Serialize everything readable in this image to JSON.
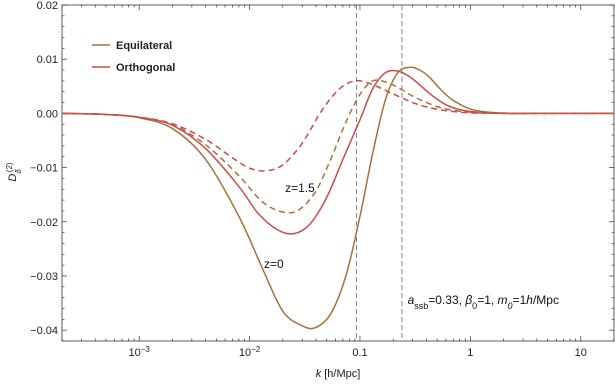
{
  "chart_data": {
    "type": "line",
    "xscale": "log",
    "xlim": [
      0.0002,
      20
    ],
    "ylim": [
      -0.042,
      0.02
    ],
    "xlabel_italic": "k",
    "xlabel_unit": " [h/Mpc]",
    "ylabel_base": "D",
    "ylabel_sub": "δ",
    "ylabel_sup": "(2)",
    "x_ticks": [
      {
        "value": 0.001,
        "base": "10",
        "exp": "−3"
      },
      {
        "value": 0.01,
        "base": "10",
        "exp": "−2"
      },
      {
        "value": 0.1,
        "label": "0.1"
      },
      {
        "value": 1,
        "label": "1"
      },
      {
        "value": 10,
        "label": "10"
      }
    ],
    "y_ticks": [
      {
        "value": 0.02,
        "label": "0.02"
      },
      {
        "value": 0.01,
        "label": "0.01"
      },
      {
        "value": 0.0,
        "label": "0.00"
      },
      {
        "value": -0.01,
        "label": "−0.01"
      },
      {
        "value": -0.02,
        "label": "−0.02"
      },
      {
        "value": -0.03,
        "label": "−0.03"
      },
      {
        "value": -0.04,
        "label": "−0.04"
      }
    ],
    "vlines": [
      0.093,
      0.24
    ],
    "legend": {
      "placement": "top-left",
      "entries": [
        {
          "name": "Equilateral",
          "color": "#a5733a"
        },
        {
          "name": "Orthogonal",
          "color": "#cf4b4b"
        }
      ]
    },
    "series": [
      {
        "name": "Equilateral",
        "redshift": "z=0",
        "color": "#a5733a",
        "dashed": false,
        "x": [
          0.0002,
          0.0005,
          0.001,
          0.002,
          0.004,
          0.008,
          0.013,
          0.02,
          0.03,
          0.04,
          0.055,
          0.075,
          0.1,
          0.13,
          0.17,
          0.22,
          0.28,
          0.34,
          0.42,
          0.55,
          0.7,
          1.0,
          1.5,
          2.5,
          5,
          10,
          20
        ],
        "y": [
          0.0,
          -0.0002,
          -0.0008,
          -0.0028,
          -0.0085,
          -0.019,
          -0.0285,
          -0.0365,
          -0.0392,
          -0.0395,
          -0.0368,
          -0.0298,
          -0.019,
          -0.0075,
          0.0025,
          0.0075,
          0.0085,
          0.0081,
          0.0068,
          0.0042,
          0.0024,
          0.0008,
          0.0002,
          0.0,
          0.0,
          0.0,
          0.0
        ]
      },
      {
        "name": "Orthogonal",
        "redshift": "z=0",
        "color": "#cf4b4b",
        "dashed": false,
        "x": [
          0.0002,
          0.0005,
          0.001,
          0.002,
          0.004,
          0.008,
          0.012,
          0.018,
          0.025,
          0.035,
          0.05,
          0.07,
          0.1,
          0.13,
          0.17,
          0.22,
          0.28,
          0.35,
          0.45,
          0.6,
          0.8,
          1.2,
          2,
          4,
          10,
          20
        ],
        "y": [
          0.0,
          -0.0002,
          -0.0007,
          -0.0022,
          -0.0065,
          -0.0135,
          -0.0185,
          -0.0215,
          -0.0222,
          -0.0205,
          -0.0155,
          -0.0085,
          -0.0012,
          0.0045,
          0.0075,
          0.0078,
          0.0068,
          0.0052,
          0.0033,
          0.0016,
          0.0007,
          0.0002,
          0.0,
          0.0,
          0.0,
          0.0
        ]
      },
      {
        "name": "Equilateral",
        "redshift": "z=1.5",
        "color": "#a5733a",
        "dashed": true,
        "x": [
          0.0002,
          0.0005,
          0.001,
          0.002,
          0.004,
          0.008,
          0.013,
          0.02,
          0.028,
          0.04,
          0.055,
          0.075,
          0.1,
          0.13,
          0.17,
          0.22,
          0.3,
          0.4,
          0.55,
          0.8,
          1.2,
          2,
          4,
          10,
          20
        ],
        "y": [
          0.0,
          -0.0002,
          -0.0007,
          -0.0021,
          -0.0058,
          -0.0115,
          -0.0163,
          -0.0182,
          -0.0178,
          -0.0143,
          -0.0082,
          -0.0015,
          0.0035,
          0.006,
          0.0058,
          0.0048,
          0.0032,
          0.002,
          0.001,
          0.0004,
          0.0001,
          0.0,
          0.0,
          0.0,
          0.0
        ]
      },
      {
        "name": "Orthogonal",
        "redshift": "z=1.5",
        "color": "#cf4b4b",
        "dashed": true,
        "x": [
          0.0002,
          0.0005,
          0.001,
          0.002,
          0.004,
          0.007,
          0.01,
          0.014,
          0.02,
          0.03,
          0.045,
          0.065,
          0.09,
          0.12,
          0.16,
          0.22,
          0.3,
          0.4,
          0.6,
          1.0,
          2,
          4,
          10,
          20
        ],
        "y": [
          0.0,
          -0.0002,
          -0.0007,
          -0.0019,
          -0.0048,
          -0.0082,
          -0.0101,
          -0.0106,
          -0.0095,
          -0.0055,
          0.0005,
          0.0045,
          0.006,
          0.0056,
          0.0045,
          0.0032,
          0.002,
          0.0012,
          0.0005,
          0.0001,
          0.0,
          0.0,
          0.0,
          0.0
        ]
      }
    ],
    "annotations": [
      {
        "text": "z=1.5",
        "x": 0.021,
        "y": -0.0145
      },
      {
        "text": "z=0",
        "x": 0.0135,
        "y": -0.0285
      }
    ],
    "params": {
      "a_base": "a",
      "a_sub": "ssb",
      "a_val": "=0.33, ",
      "beta_base": "β",
      "beta_sub": "0",
      "beta_val": "=1, ",
      "m_base": "m",
      "m_sub": "0",
      "m_val": "=1",
      "m_unit_h": "h",
      "m_unit_rest": "/Mpc",
      "x": 0.27,
      "y": -0.0352
    }
  }
}
